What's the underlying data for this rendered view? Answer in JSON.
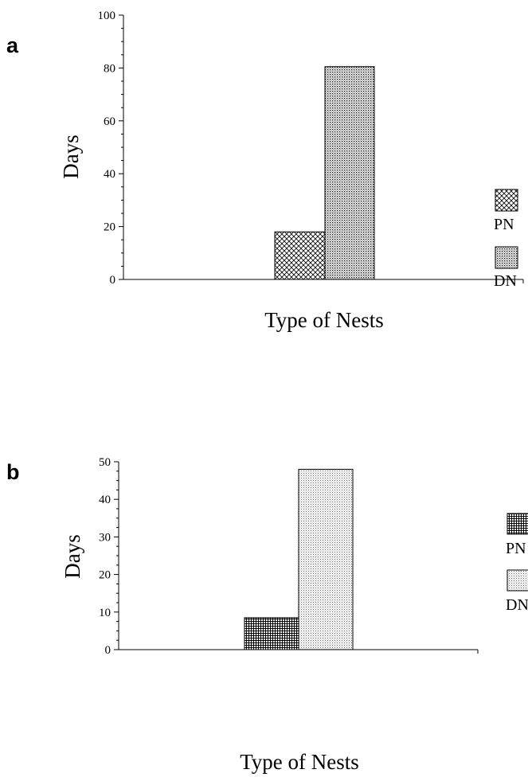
{
  "chart_data": [
    {
      "panel": "a",
      "type": "bar",
      "categories": [
        "PN",
        "DN"
      ],
      "values": [
        18,
        80.5
      ],
      "ylabel": "Days",
      "xlabel": "Type of Nests",
      "ylim": [
        0,
        100
      ],
      "yticks": [
        "0",
        "20",
        "40",
        "60",
        "80",
        "100"
      ],
      "legend": [
        "PN",
        "DN"
      ],
      "legend_placement": "right",
      "grid": false
    },
    {
      "panel": "b",
      "type": "bar",
      "categories": [
        "PN",
        "DN"
      ],
      "values": [
        8.5,
        48
      ],
      "ylabel": "Days",
      "xlabel": "Type of Nests",
      "ylim": [
        0,
        50
      ],
      "yticks": [
        "0",
        "10",
        "20",
        "30",
        "40",
        "50"
      ],
      "legend": [
        "PN",
        "DN"
      ],
      "legend_placement": "right",
      "grid": false
    }
  ]
}
